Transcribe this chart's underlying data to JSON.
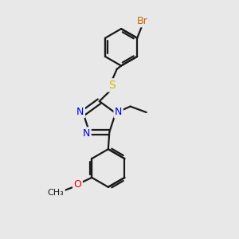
{
  "bg_color": "#e8e8e8",
  "bond_color": "#1a1a1a",
  "N_color": "#0000ee",
  "S_color": "#ccbb00",
  "O_color": "#ee0000",
  "Br_color": "#cc6600",
  "bond_width": 1.6,
  "figsize": [
    3.0,
    3.0
  ],
  "dpi": 100,
  "xlim": [
    0,
    10
  ],
  "ylim": [
    0,
    10
  ]
}
